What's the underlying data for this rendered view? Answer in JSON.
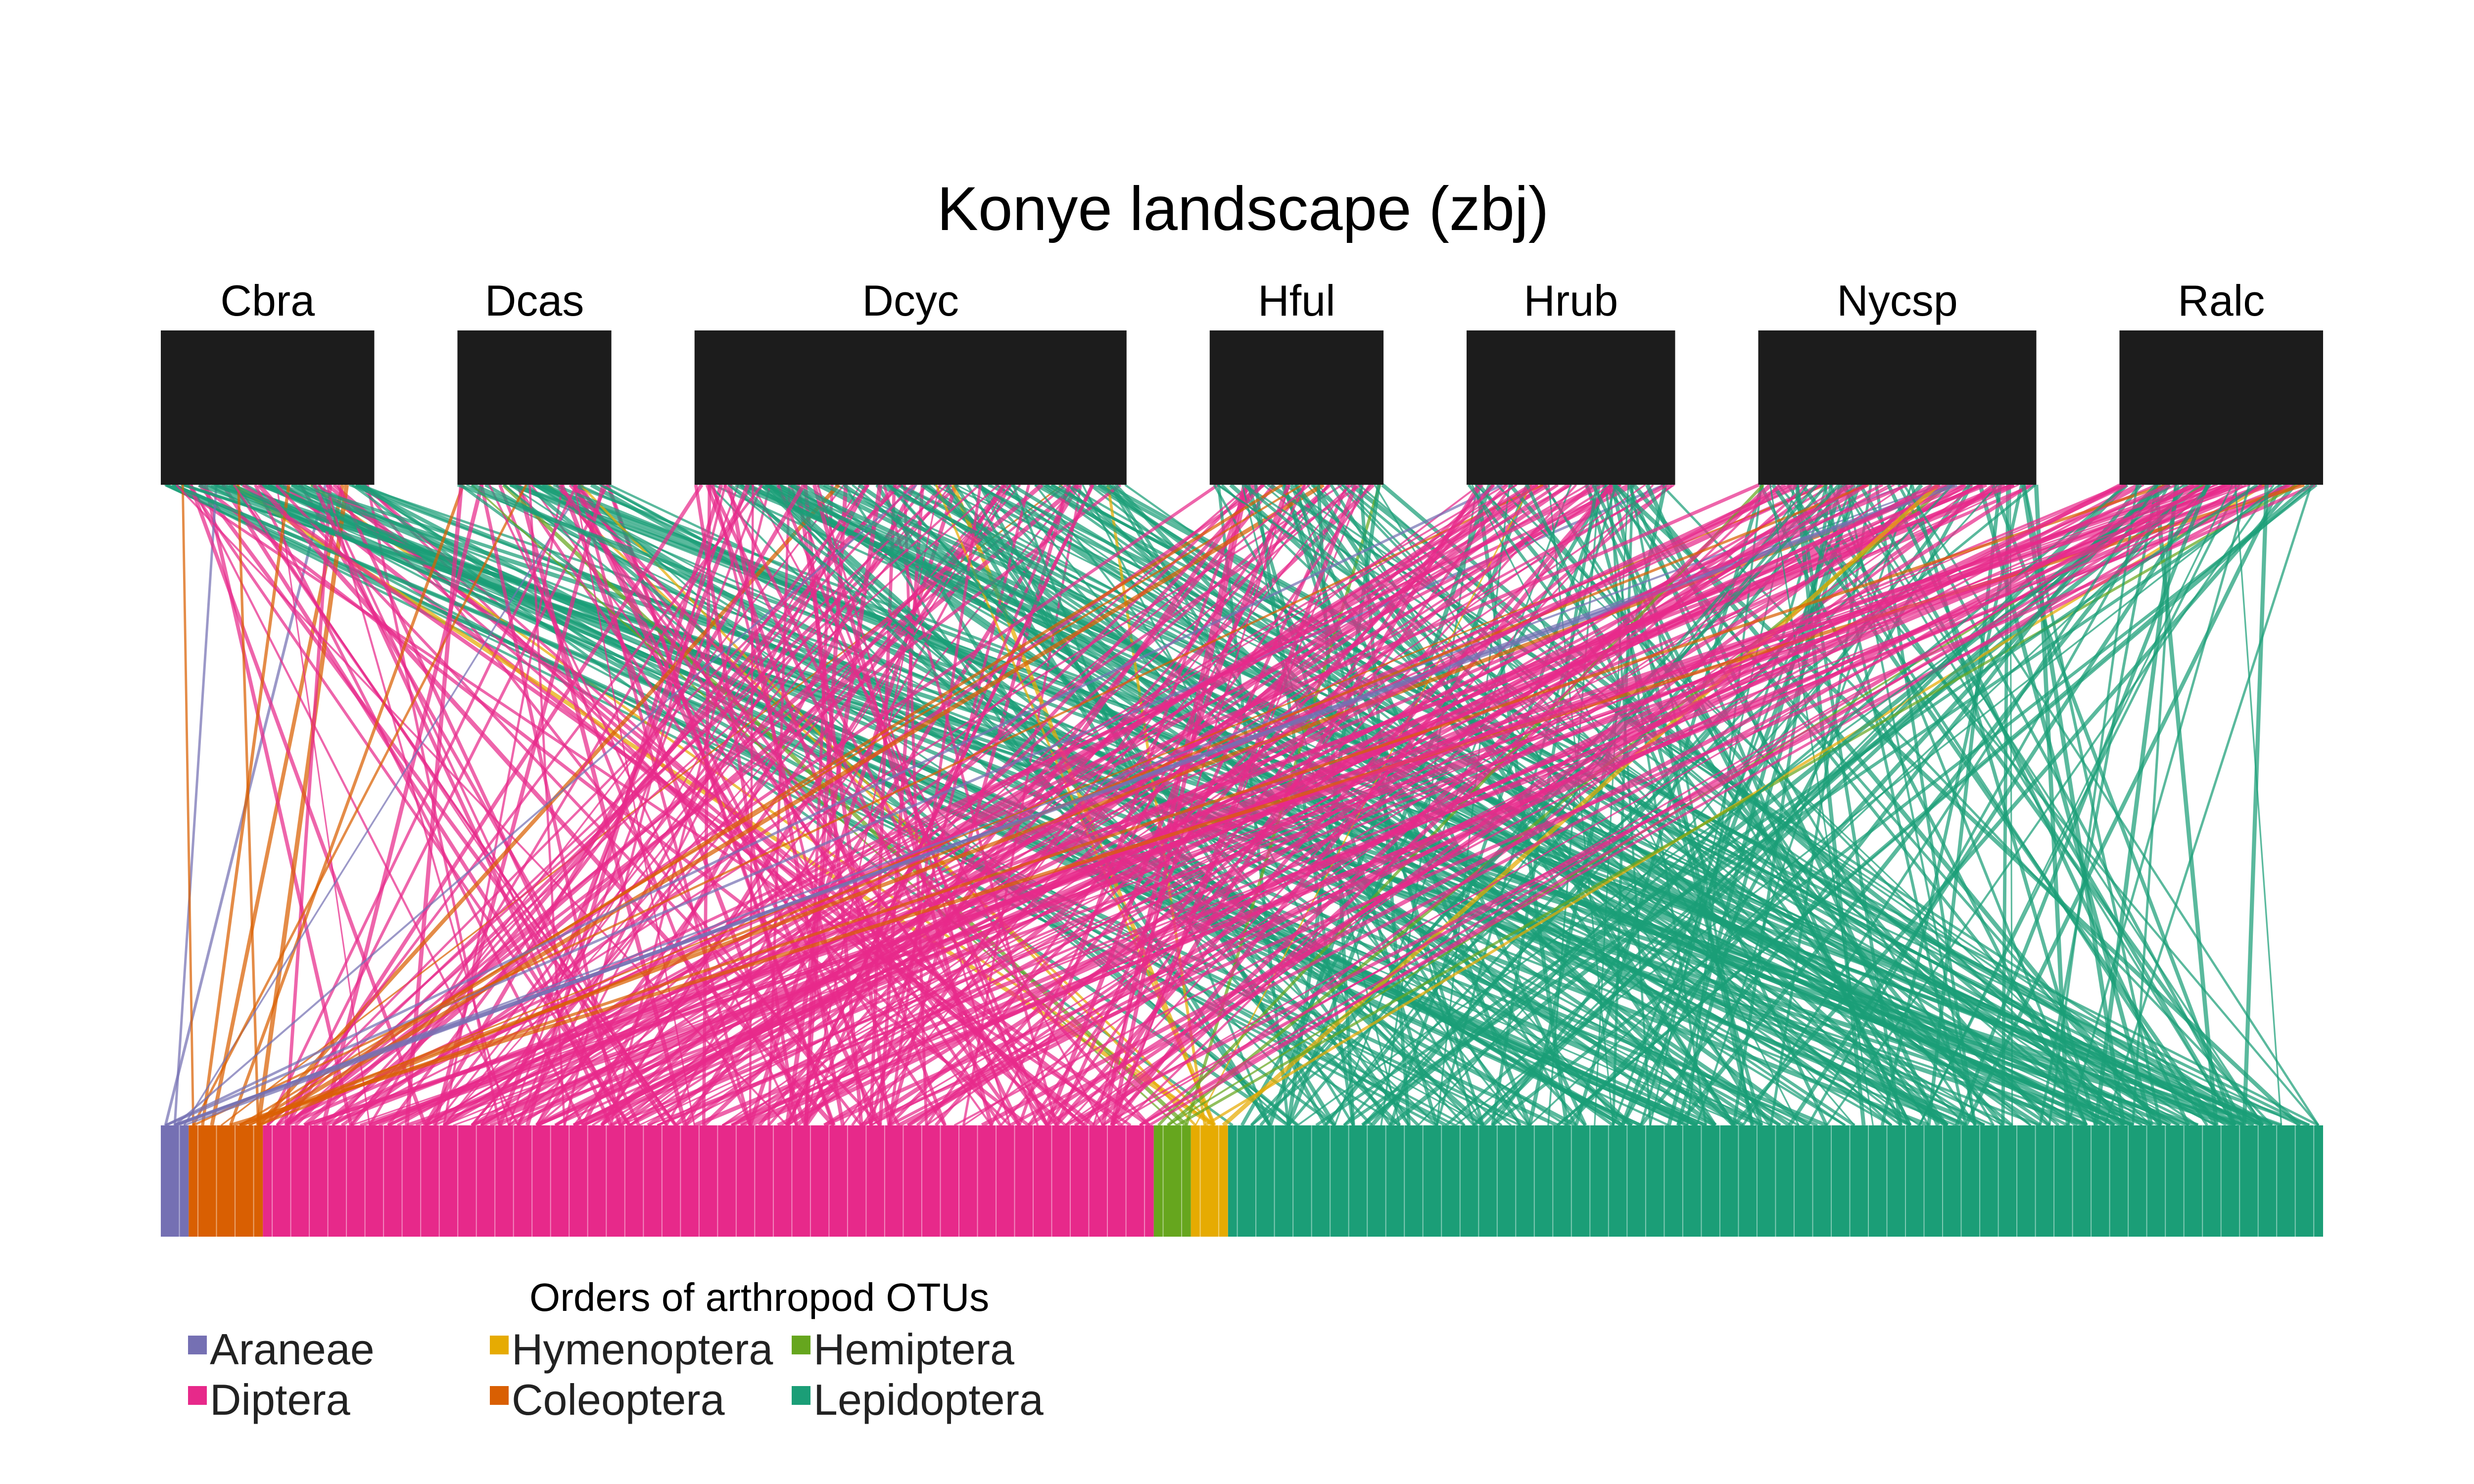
{
  "title": "Konye landscape (zbj)",
  "predators": [
    {
      "name": "Cbra",
      "weight": 43
    },
    {
      "name": "Dcas",
      "weight": 31
    },
    {
      "name": "Dcyc",
      "weight": 87
    },
    {
      "name": "Hful",
      "weight": 35
    },
    {
      "name": "Hrub",
      "weight": 42
    },
    {
      "name": "Nycsp",
      "weight": 56
    },
    {
      "name": "Ralc",
      "weight": 41
    }
  ],
  "orders": [
    {
      "name": "Araneae",
      "color": "#7570b3",
      "otus": 3
    },
    {
      "name": "Coleoptera",
      "color": "#d95f02",
      "otus": 8
    },
    {
      "name": "Diptera",
      "color": "#e7298a",
      "otus": 96
    },
    {
      "name": "Hemiptera",
      "color": "#66a61e",
      "otus": 4
    },
    {
      "name": "Hymenoptera",
      "color": "#e6ab02",
      "otus": 4
    },
    {
      "name": "Lepidoptera",
      "color": "#1b9e77",
      "otus": 118
    }
  ],
  "legend": {
    "title": "Orders of arthropod OTUs",
    "items": [
      "Araneae",
      "Diptera",
      "Hymenoptera",
      "Coleoptera",
      "Hemiptera",
      "Lepidoptera"
    ]
  }
}
